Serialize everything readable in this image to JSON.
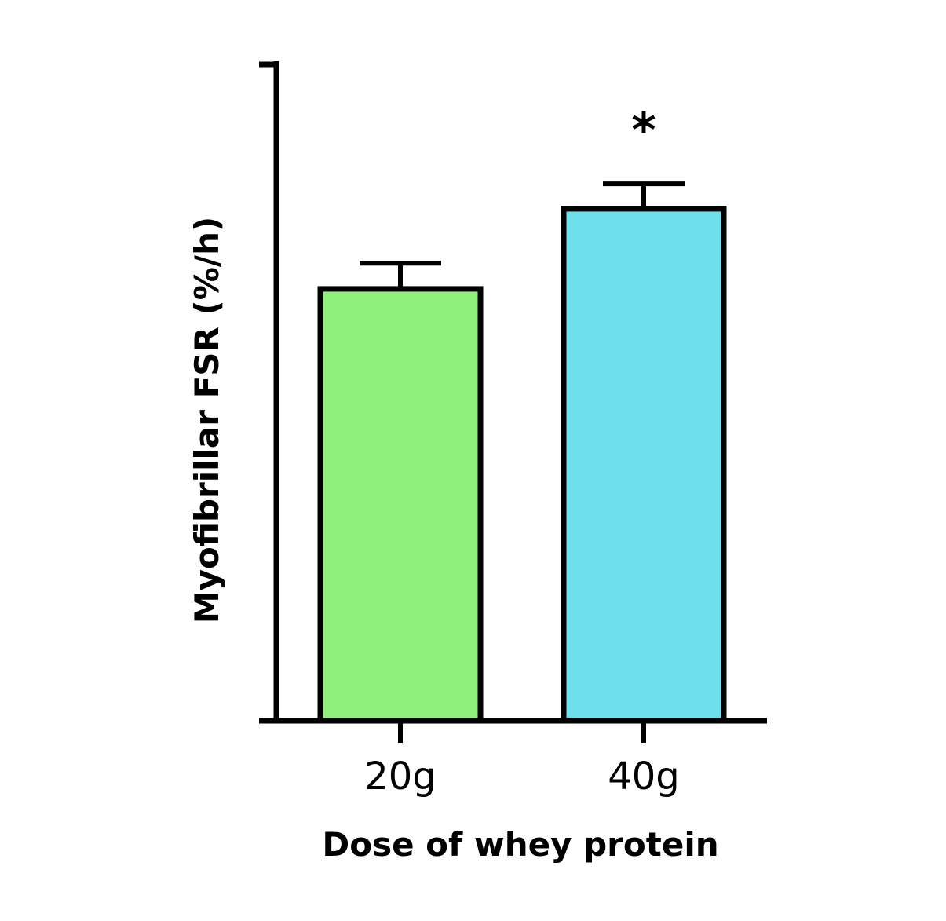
{
  "chart_data": {
    "type": "bar",
    "title": "",
    "xlabel": "Dose of whey protein",
    "ylabel": "Myofibrillar FSR (%/h)",
    "categories": [
      "20g",
      "40g"
    ],
    "values": [
      0.658,
      0.78
    ],
    "error_upper": [
      0.039,
      0.038
    ],
    "ylim": [
      0,
      1
    ],
    "y_tick_labels": "none",
    "grid": false,
    "legend": "none",
    "annotations": [
      {
        "category": "40g",
        "text": "*"
      }
    ],
    "colors": [
      "#90F07C",
      "#6EE0EC"
    ],
    "edge_color": "#000000"
  }
}
